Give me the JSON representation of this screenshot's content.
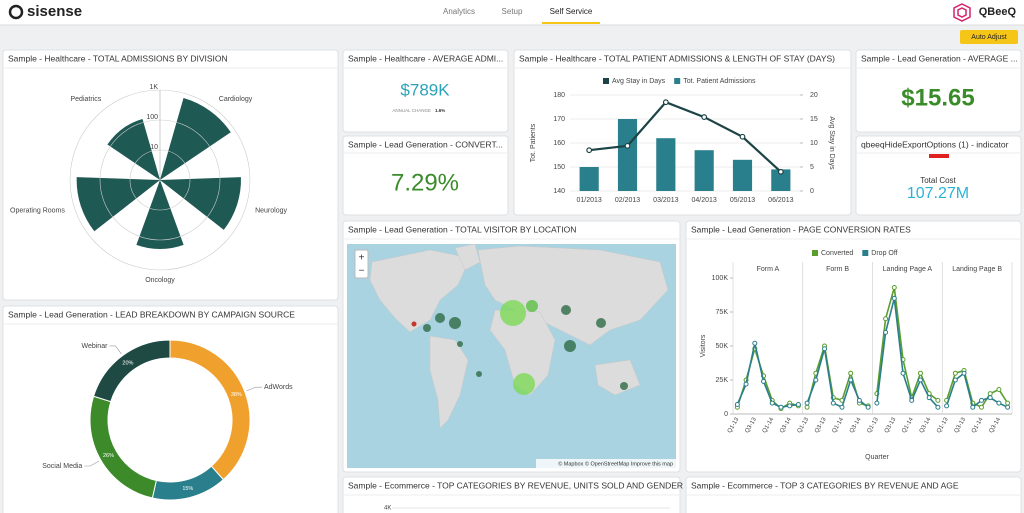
{
  "header": {
    "logo": "sisense",
    "tabs": [
      "Analytics",
      "Setup",
      "Self Service"
    ],
    "brand": "QBeeQ",
    "button": "Auto Adjust"
  },
  "widgets": {
    "kpi_avg_admissions": {
      "title": "Sample - Healthcare - AVERAGE ADMI...",
      "value": "$789K",
      "change_label": "ANNUAL CHANGE",
      "change": "1.6%"
    },
    "kpi_conversion": {
      "title": "Sample - Lead Generation - CONVERT...",
      "value": "7.29%"
    },
    "kpi_avg_lead": {
      "title": "Sample - Lead Generation - AVERAGE ...",
      "value": "$15.65"
    },
    "indicator": {
      "title": "qbeeqHideExportOptions (1) - indicator",
      "label": "Total Cost",
      "value": "107.27M"
    },
    "map": {
      "title": "Sample - Lead Generation - TOTAL VISITOR BY LOCATION",
      "zoom_in": "+",
      "zoom_out": "−",
      "attribution": "© Mapbox © OpenStreetMap Improve this map"
    },
    "ecommerce_gender": {
      "title": "Sample - Ecommerce - TOP CATEGORIES BY REVENUE, UNITS SOLD AND GENDER",
      "tick": "4K"
    },
    "ecommerce_age": {
      "title": "Sample - Ecommerce - TOP 3 CATEGORIES BY REVENUE AND AGE"
    }
  },
  "chart_data": [
    {
      "type": "polar-area",
      "title": "Sample - Healthcare - TOTAL ADMISSIONS BY DIVISION",
      "categories": [
        "Pediatrics",
        "Cardiology",
        "Neurology",
        "Oncology",
        "Operating Rooms"
      ],
      "values": [
        130,
        700,
        500,
        200,
        600
      ],
      "color": "#1f5954",
      "log_scale": true,
      "rlim": [
        1,
        1000
      ],
      "rticks": [
        10,
        100,
        {
          "value": 1000,
          "label": "1K"
        }
      ]
    },
    {
      "type": "combo",
      "title": "Sample - Healthcare - TOTAL PATIENT ADMISSIONS & LENGTH OF STAY (DAYS)",
      "categories": [
        "01/2013",
        "02/2013",
        "03/2013",
        "04/2013",
        "05/2013",
        "06/2013"
      ],
      "series": [
        {
          "name": "Avg Stay in Days",
          "color": "#1c4446",
          "type": "line",
          "axis": "y2",
          "values": [
            8.5,
            9.4,
            18.5,
            15.4,
            11.3,
            4
          ]
        },
        {
          "name": "Tot. Patient Admissions",
          "color": "#2a7f8c",
          "type": "bar",
          "values": [
            150,
            170,
            162,
            157,
            153,
            149
          ]
        }
      ],
      "ylabel": "Tot. Patients",
      "y2label": "Avg Stay in Days",
      "ylim": [
        140,
        180
      ],
      "yticks": [
        140,
        150,
        160,
        170,
        180
      ],
      "y2lim": [
        0,
        20
      ],
      "y2ticks": [
        0,
        5,
        10,
        15,
        20
      ]
    },
    {
      "type": "panel-line",
      "title": "Sample - Lead Generation - PAGE CONVERSION RATES",
      "series": [
        {
          "name": "Converted",
          "color": "#5a9e2e"
        },
        {
          "name": "Drop Off",
          "color": "#2a7f8c"
        }
      ],
      "categories": [
        "Q1-13",
        null,
        "Q3-13",
        null,
        "Q1-14",
        null,
        "Q3-14",
        null
      ],
      "panels": [
        {
          "title": "Form A",
          "values": [
            [
              5000,
              25000,
              48000,
              28000,
              10000,
              4000,
              8000,
              6000
            ],
            [
              7000,
              22000,
              52000,
              24000,
              8000,
              5000,
              6000,
              7000
            ]
          ]
        },
        {
          "title": "Form B",
          "values": [
            [
              5000,
              30000,
              50000,
              12000,
              10000,
              30000,
              8000,
              6000
            ],
            [
              8000,
              25000,
              48000,
              8000,
              5000,
              25000,
              10000,
              5000
            ]
          ]
        },
        {
          "title": "Landing Page A",
          "values": [
            [
              15000,
              70000,
              93000,
              40000,
              12000,
              30000,
              15000,
              10000
            ],
            [
              8000,
              60000,
              85000,
              30000,
              10000,
              25000,
              12000,
              5000
            ]
          ]
        },
        {
          "title": "Landing Page B",
          "values": [
            [
              10000,
              30000,
              32000,
              8000,
              5000,
              15000,
              18000,
              8000
            ],
            [
              6000,
              25000,
              30000,
              5000,
              10000,
              12000,
              8000,
              5000
            ]
          ]
        }
      ],
      "xlabel": "Quarter",
      "ylabel": "Visitors",
      "ylim": [
        0,
        100000
      ],
      "yticks": [
        0,
        {
          "value": 25000,
          "label": "25K"
        },
        {
          "value": 50000,
          "label": "50K"
        },
        {
          "value": 75000,
          "label": "75K"
        },
        {
          "value": 100000,
          "label": "100K"
        }
      ]
    },
    {
      "type": "donut",
      "title": "Sample - Lead Generation - LEAD BREAKDOWN BY CAMPAIGN SOURCE",
      "categories": [
        "AdWords",
        null,
        "Social Media",
        "Webinar"
      ],
      "values": [
        38,
        15,
        26,
        20
      ],
      "value_labels": [
        "38%",
        "15%",
        "26%",
        "20%"
      ],
      "colors": [
        "#f0a02c",
        "#2a7f8c",
        "#3d8a2a",
        "#1f4a44"
      ]
    }
  ]
}
